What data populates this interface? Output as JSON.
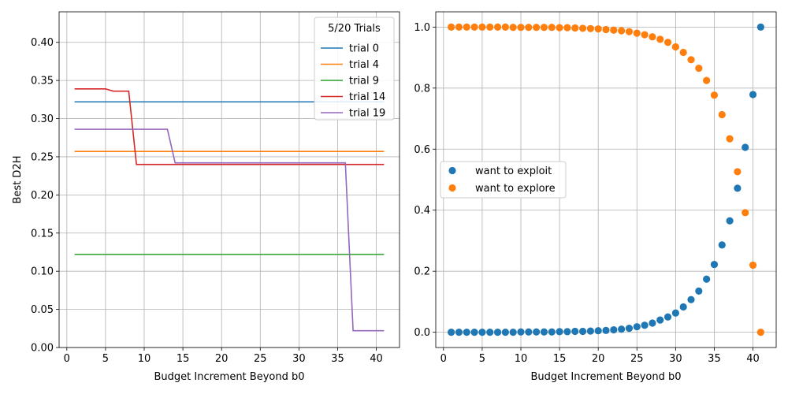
{
  "colors": {
    "blue": "#1f77b4",
    "orange": "#ff7f0e",
    "green": "#2ca02c",
    "red": "#d62728",
    "purple": "#9467bd",
    "grid": "#b0b0b0"
  },
  "chart_data": [
    {
      "type": "line",
      "title": "",
      "xlabel": "Budget Increment Beyond b0",
      "ylabel": "Best D2H",
      "xlim": [
        -1,
        43
      ],
      "ylim": [
        0,
        0.44
      ],
      "xticks": [
        0,
        5,
        10,
        15,
        20,
        25,
        30,
        35,
        40
      ],
      "yticks": [
        0.0,
        0.05,
        0.1,
        0.15,
        0.2,
        0.25,
        0.3,
        0.35,
        0.4
      ],
      "grid": true,
      "legend": {
        "title": "5/20 Trials",
        "placement": "top-right"
      },
      "series": [
        {
          "name": "trial 0",
          "color": "blue",
          "points": [
            [
              1,
              0.322
            ],
            [
              41,
              0.322
            ]
          ]
        },
        {
          "name": "trial 4",
          "color": "orange",
          "points": [
            [
              1,
              0.257
            ],
            [
              41,
              0.257
            ]
          ]
        },
        {
          "name": "trial 9",
          "color": "green",
          "points": [
            [
              1,
              0.122
            ],
            [
              41,
              0.122
            ]
          ]
        },
        {
          "name": "trial 14",
          "color": "red",
          "points": [
            [
              1,
              0.339
            ],
            [
              5,
              0.339
            ],
            [
              6,
              0.336
            ],
            [
              8,
              0.336
            ],
            [
              9,
              0.24
            ],
            [
              41,
              0.24
            ]
          ]
        },
        {
          "name": "trial 19",
          "color": "purple",
          "points": [
            [
              1,
              0.286
            ],
            [
              13,
              0.286
            ],
            [
              14,
              0.242
            ],
            [
              36,
              0.242
            ],
            [
              37,
              0.022
            ],
            [
              41,
              0.022
            ]
          ]
        }
      ]
    },
    {
      "type": "scatter",
      "title": "",
      "xlabel": "Budget Increment Beyond b0",
      "ylabel": "",
      "xlim": [
        -1,
        43
      ],
      "ylim": [
        -0.05,
        1.05
      ],
      "xticks": [
        0,
        5,
        10,
        15,
        20,
        25,
        30,
        35,
        40
      ],
      "yticks": [
        0.0,
        0.2,
        0.4,
        0.6,
        0.8,
        1.0
      ],
      "grid": true,
      "legend": {
        "placement": "center-left"
      },
      "x": [
        1,
        2,
        3,
        4,
        5,
        6,
        7,
        8,
        9,
        10,
        11,
        12,
        13,
        14,
        15,
        16,
        17,
        18,
        19,
        20,
        21,
        22,
        23,
        24,
        25,
        26,
        27,
        28,
        29,
        30,
        31,
        32,
        33,
        34,
        35,
        36,
        37,
        38,
        39,
        40,
        41
      ],
      "series": [
        {
          "name": "want to exploit",
          "color": "blue",
          "values": [
            0.0,
            0.0,
            0.0,
            0.0,
            0.0,
            0.0,
            0.0,
            0.0,
            0.0,
            0.001,
            0.001,
            0.001,
            0.001,
            0.001,
            0.002,
            0.002,
            0.003,
            0.003,
            0.004,
            0.005,
            0.006,
            0.008,
            0.01,
            0.013,
            0.018,
            0.023,
            0.03,
            0.04,
            0.05,
            0.063,
            0.083,
            0.107,
            0.135,
            0.174,
            0.222,
            0.286,
            0.365,
            0.472,
            0.606,
            0.779,
            1.0
          ]
        },
        {
          "name": "want to explore",
          "color": "orange",
          "values": [
            1.0,
            1.0,
            1.0,
            1.0,
            1.0,
            1.0,
            1.0,
            1.0,
            0.999,
            0.999,
            0.999,
            0.999,
            0.999,
            0.999,
            0.998,
            0.998,
            0.997,
            0.996,
            0.995,
            0.994,
            0.992,
            0.99,
            0.988,
            0.985,
            0.98,
            0.975,
            0.968,
            0.96,
            0.95,
            0.935,
            0.917,
            0.893,
            0.865,
            0.825,
            0.777,
            0.713,
            0.634,
            0.526,
            0.392,
            0.22,
            0.0
          ]
        }
      ]
    }
  ]
}
